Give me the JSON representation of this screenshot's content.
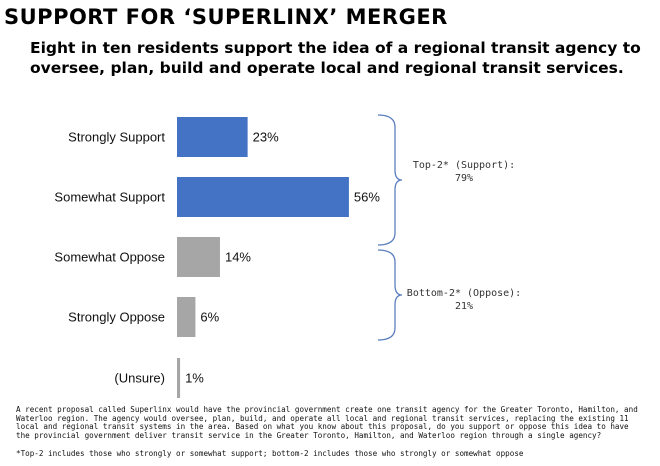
{
  "header": {
    "title": "SUPPORT FOR ‘SUPERLINX’ MERGER",
    "subtitle": "Eight in ten residents support the idea of a regional transit agency to oversee, plan, build and operate local and regional transit services."
  },
  "chart_data": {
    "type": "bar",
    "orientation": "horizontal",
    "categories": [
      "Strongly Support",
      "Somewhat Support",
      "Somewhat Oppose",
      "Strongly Oppose",
      "(Unsure)"
    ],
    "values": [
      23,
      56,
      14,
      6,
      1
    ],
    "value_labels": [
      "23%",
      "56%",
      "14%",
      "6%",
      "1%"
    ],
    "colors": [
      "#4472c4",
      "#4472c4",
      "#a6a6a6",
      "#a6a6a6",
      "#a6a6a6"
    ],
    "groups": [
      {
        "line1": "Top-2* (Support):",
        "line2": "79%",
        "categories": [
          "Strongly Support",
          "Somewhat Support"
        ]
      },
      {
        "line1": "Bottom-2* (Oppose):",
        "line2": "21%",
        "categories": [
          "Somewhat Oppose",
          "Strongly Oppose"
        ]
      }
    ],
    "bracket_color": "#5b7fbf"
  },
  "notes": {
    "question": "A recent proposal called Superlinx would have the provincial government create one transit agency for the Greater Toronto, Hamilton, and Waterloo region. The agency would oversee, plan, build, and operate all local and regional transit services, replacing the existing 11 local and regional transit systems in the area. Based on what you know about this proposal, do you support or oppose this idea to have the provincial government deliver transit service in the Greater Toronto, Hamilton, and Waterloo region through a single agency?",
    "footnote": "*Top-2 includes those who strongly or somewhat support; bottom-2 includes those who strongly or somewhat oppose"
  }
}
